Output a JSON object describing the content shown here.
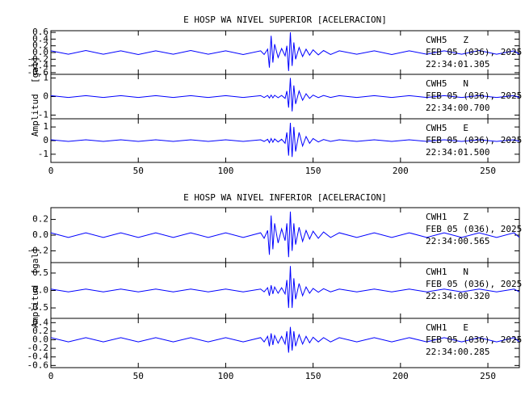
{
  "chart_data": [
    {
      "type": "line",
      "title": "E HOSP WA NIVEL SUPERIOR [ACELERACION]",
      "y_label": "Amplitud  [gal]",
      "xlim": [
        0,
        268
      ],
      "xticks": [
        0,
        50,
        100,
        150,
        200,
        250
      ],
      "x": [
        0,
        10,
        20,
        30,
        40,
        50,
        60,
        70,
        80,
        90,
        100,
        110,
        120,
        122,
        124,
        125,
        126,
        127,
        128,
        130,
        132,
        134,
        135,
        136,
        137,
        138,
        139,
        140,
        142,
        144,
        146,
        148,
        150,
        153,
        156,
        160,
        165,
        175,
        185,
        195,
        205,
        215,
        225,
        235,
        245,
        255,
        265,
        268
      ],
      "subplots": [
        {
          "ylim": [
            -0.65,
            0.65
          ],
          "yticks": [
            0.6,
            0.4,
            0.2,
            {
              "value": 0,
              "label": "0.0"
            },
            -0.2,
            -0.4,
            -0.6
          ],
          "labels": [
            "CWH5   Z",
            "FEB 05 (036), 2025",
            "22:34:01.305"
          ],
          "series": [
            {
              "color": "#0000ff",
              "values": [
                0.05,
                -0.05,
                0.06,
                -0.05,
                0.05,
                -0.06,
                0.05,
                -0.05,
                0.06,
                -0.05,
                0.05,
                -0.06,
                0.05,
                -0.06,
                0.1,
                -0.45,
                0.5,
                -0.3,
                0.25,
                -0.15,
                0.12,
                -0.1,
                0.2,
                -0.55,
                0.6,
                -0.4,
                0.3,
                -0.2,
                0.15,
                -0.12,
                0.1,
                -0.08,
                0.08,
                -0.07,
                0.06,
                -0.06,
                0.05,
                -0.05,
                0.05,
                -0.06,
                0.05,
                -0.05,
                0.05,
                -0.05,
                0.06,
                -0.05,
                0.05,
                -0.05
              ]
            }
          ]
        },
        {
          "ylim": [
            -1.2,
            1.2
          ],
          "yticks": [
            1,
            0,
            -1
          ],
          "labels": [
            "CWH5   N",
            "FEB 05 (036), 2025",
            "22:34:00.700"
          ],
          "series": [
            {
              "color": "#0000ff",
              "values": [
                0.05,
                -0.05,
                0.05,
                -0.05,
                0.05,
                -0.05,
                0.05,
                -0.05,
                0.05,
                -0.05,
                0.05,
                -0.05,
                0.05,
                -0.05,
                0.06,
                -0.08,
                0.08,
                -0.07,
                0.07,
                -0.06,
                0.06,
                -0.1,
                0.3,
                -0.6,
                1.0,
                -0.8,
                0.6,
                -0.4,
                0.3,
                -0.2,
                0.15,
                -0.1,
                0.08,
                -0.06,
                0.06,
                -0.05,
                0.05,
                -0.05,
                0.05,
                -0.05,
                0.05,
                -0.05,
                0.05,
                -0.05,
                0.05,
                -0.05,
                0.05,
                -0.05
              ]
            }
          ]
        },
        {
          "ylim": [
            -1.6,
            1.6
          ],
          "yticks": [
            1,
            0,
            -1
          ],
          "labels": [
            "CWH5   E",
            "FEB 05 (036), 2025",
            "22:34:01.500"
          ],
          "series": [
            {
              "color": "#0000ff",
              "values": [
                0.06,
                -0.06,
                0.06,
                -0.06,
                0.06,
                -0.06,
                0.06,
                -0.06,
                0.06,
                -0.06,
                0.06,
                -0.06,
                0.06,
                -0.06,
                0.1,
                -0.15,
                0.15,
                -0.12,
                0.12,
                -0.1,
                0.1,
                -0.2,
                0.6,
                -1.1,
                1.3,
                -1.2,
                1.0,
                -0.8,
                0.6,
                -0.4,
                0.3,
                -0.2,
                0.15,
                -0.1,
                0.08,
                -0.06,
                0.06,
                -0.06,
                0.06,
                -0.06,
                0.06,
                -0.06,
                0.06,
                -0.06,
                0.06,
                -0.06,
                0.06,
                -0.06
              ]
            }
          ]
        }
      ]
    },
    {
      "type": "line",
      "title": "E HOSP WA NIVEL INFERIOR [ACELERACION]",
      "y_label": "Amplitud  [gal]",
      "xlim": [
        0,
        268
      ],
      "xticks": [
        0,
        50,
        100,
        150,
        200,
        250
      ],
      "x": [
        0,
        10,
        20,
        30,
        40,
        50,
        60,
        70,
        80,
        90,
        100,
        110,
        120,
        122,
        124,
        125,
        126,
        127,
        128,
        130,
        132,
        134,
        135,
        136,
        137,
        138,
        139,
        140,
        142,
        144,
        146,
        148,
        150,
        153,
        156,
        160,
        165,
        175,
        185,
        195,
        205,
        215,
        225,
        235,
        245,
        255,
        265,
        268
      ],
      "subplots": [
        {
          "ylim": [
            -0.35,
            0.35
          ],
          "yticks": [
            0.2,
            {
              "value": 0,
              "label": "0.0"
            },
            -0.2
          ],
          "labels": [
            "CWH1   Z",
            "FEB 05 (036), 2025",
            "22:34:00.565"
          ],
          "series": [
            {
              "color": "#0000ff",
              "values": [
                0.03,
                -0.03,
                0.03,
                -0.03,
                0.03,
                -0.03,
                0.03,
                -0.03,
                0.03,
                -0.03,
                0.03,
                -0.03,
                0.03,
                -0.04,
                0.06,
                -0.25,
                0.25,
                -0.18,
                0.15,
                -0.1,
                0.08,
                -0.07,
                0.15,
                -0.28,
                0.3,
                -0.2,
                0.15,
                -0.12,
                0.1,
                -0.08,
                0.06,
                -0.05,
                0.05,
                -0.04,
                0.04,
                -0.03,
                0.03,
                -0.03,
                0.03,
                -0.03,
                0.03,
                -0.03,
                0.03,
                -0.03,
                0.03,
                -0.03,
                0.03,
                -0.03
              ]
            }
          ]
        },
        {
          "ylim": [
            -0.8,
            0.8
          ],
          "yticks": [
            0.5,
            {
              "value": 0,
              "label": "0.0"
            },
            -0.5
          ],
          "labels": [
            "CWH1   N",
            "FEB 05 (036), 2025",
            "22:34:00.320"
          ],
          "series": [
            {
              "color": "#0000ff",
              "values": [
                0.04,
                -0.04,
                0.04,
                -0.04,
                0.04,
                -0.04,
                0.04,
                -0.04,
                0.04,
                -0.04,
                0.04,
                -0.04,
                0.04,
                -0.04,
                0.08,
                -0.15,
                0.15,
                -0.1,
                0.1,
                -0.08,
                0.08,
                -0.1,
                0.3,
                -0.5,
                0.7,
                -0.5,
                0.35,
                -0.25,
                0.2,
                -0.15,
                0.1,
                -0.08,
                0.06,
                -0.05,
                0.05,
                -0.04,
                0.04,
                -0.04,
                0.04,
                -0.04,
                0.04,
                -0.04,
                0.04,
                -0.04,
                0.04,
                -0.04,
                0.04,
                -0.04
              ]
            }
          ]
        },
        {
          "ylim": [
            -0.65,
            0.5
          ],
          "yticks": [
            0.4,
            0.2,
            {
              "value": 0,
              "label": "0.0"
            },
            -0.2,
            -0.4,
            -0.6
          ],
          "labels": [
            "CWH1   E",
            "FEB 05 (036), 2025",
            "22:34:00.285"
          ],
          "series": [
            {
              "color": "#0000ff",
              "values": [
                0.05,
                -0.05,
                0.05,
                -0.05,
                0.05,
                -0.05,
                0.05,
                -0.05,
                0.05,
                -0.05,
                0.05,
                -0.05,
                0.05,
                -0.05,
                0.08,
                -0.15,
                0.15,
                -0.12,
                0.1,
                -0.08,
                0.08,
                -0.1,
                0.2,
                -0.3,
                0.3,
                -0.25,
                0.2,
                -0.15,
                0.12,
                -0.1,
                0.08,
                -0.07,
                0.06,
                -0.05,
                0.05,
                -0.05,
                0.05,
                -0.05,
                0.05,
                -0.05,
                0.05,
                -0.05,
                0.05,
                -0.05,
                0.05,
                -0.05,
                0.05,
                -0.05
              ]
            }
          ]
        }
      ]
    }
  ]
}
